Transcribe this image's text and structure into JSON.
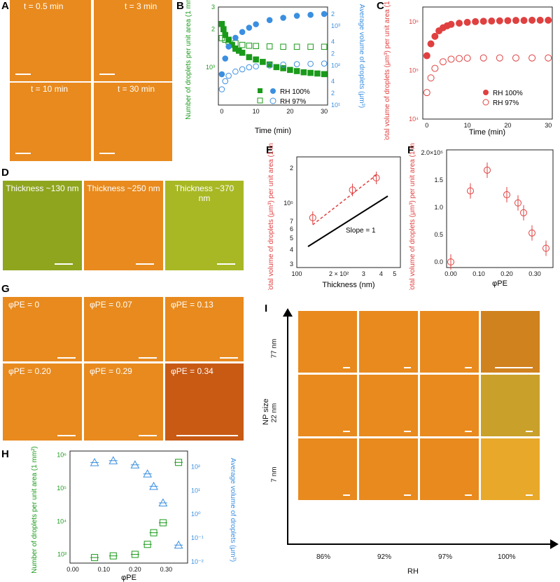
{
  "panels": {
    "A": "A",
    "B": "B",
    "C": "C",
    "D": "D",
    "E": "E",
    "F": "F",
    "G": "G",
    "H": "H",
    "I": "I"
  },
  "panelA": {
    "times": [
      "t = 0.5 min",
      "t = 3 min",
      "t = 10 min",
      "t = 30 min"
    ]
  },
  "panelD": {
    "thickness": [
      "Thickness ~130 nm",
      "Thickness ~250 nm",
      "Thickness ~370 nm"
    ]
  },
  "panelG": {
    "phi": [
      "φPE = 0",
      "φPE = 0.07",
      "φPE = 0.13",
      "φPE = 0.20",
      "φPE = 0.29",
      "φPE = 0.34"
    ]
  },
  "panelI": {
    "ylabel": "NP size",
    "xlabel": "RH",
    "rows": [
      "77 nm",
      "22 nm",
      "7 nm"
    ],
    "cols": [
      "86%",
      "92%",
      "97%",
      "100%"
    ]
  },
  "colors": {
    "green": "#1a9a1a",
    "blue": "#3b8fe0",
    "red": "#e04040",
    "orange": "#e88a1e"
  },
  "chart_data": [
    {
      "id": "B",
      "type": "scatter",
      "xlabel": "Time (min)",
      "ylabel": "Number of droplets per unit area (1 mm²)",
      "ylabel2": "Average volume of droplets (μm³)",
      "xlim": [
        -1,
        31
      ],
      "ylim": [
        500,
        3000
      ],
      "ylim2": [
        10,
        3000
      ],
      "xticks": [
        0,
        10,
        20,
        30
      ],
      "yticks": [
        "10³",
        "2",
        "3",
        "4",
        "5",
        "6"
      ],
      "yticks2": [
        "10¹",
        "2",
        "4",
        "10²",
        "2",
        "4",
        "10³",
        "2"
      ],
      "legend": [
        "RH 100%",
        "RH 97%"
      ],
      "series": [
        {
          "name": "RH 100%",
          "color": "green",
          "filled": true,
          "x": [
            0,
            0.5,
            1,
            2,
            3,
            4,
            5,
            6,
            8,
            10,
            12,
            14,
            16,
            18,
            20,
            22,
            24,
            26,
            28,
            30
          ],
          "y": [
            2200,
            2000,
            1800,
            1650,
            1500,
            1400,
            1350,
            1300,
            1200,
            1150,
            1100,
            1050,
            1000,
            980,
            950,
            930,
            910,
            900,
            890,
            880
          ]
        },
        {
          "name": "RH 97%",
          "color": "green",
          "filled": false,
          "x": [
            0,
            1,
            2,
            4,
            6,
            8,
            10,
            14,
            18,
            22,
            26,
            30
          ],
          "y": [
            1700,
            1650,
            1600,
            1550,
            1500,
            1480,
            1470,
            1460,
            1450,
            1450,
            1450,
            1450
          ]
        },
        {
          "name": "RH 100%",
          "color": "blue",
          "filled": true,
          "axis": "right",
          "x": [
            0,
            1,
            2,
            4,
            6,
            8,
            10,
            14,
            18,
            22,
            26,
            30
          ],
          "y": [
            60,
            150,
            300,
            500,
            700,
            900,
            1100,
            1400,
            1600,
            1800,
            1900,
            2000
          ]
        },
        {
          "name": "RH 97%",
          "color": "blue",
          "filled": false,
          "axis": "right",
          "x": [
            0,
            1,
            2,
            4,
            6,
            8,
            10,
            14,
            18,
            22,
            26,
            30
          ],
          "y": [
            25,
            40,
            55,
            70,
            80,
            90,
            95,
            100,
            105,
            108,
            110,
            112
          ]
        }
      ]
    },
    {
      "id": "C",
      "type": "scatter",
      "xlabel": "Time (min)",
      "ylabel": "Total volume of droplets (μm³) per unit area (1 mm²)",
      "xlim": [
        -1,
        31
      ],
      "ylim": [
        10000,
        2000000
      ],
      "xticks": [
        0,
        10,
        20,
        30
      ],
      "yticks": [
        "10⁴",
        "10⁵",
        "10⁶"
      ],
      "legend": [
        "RH 100%",
        "RH 97%"
      ],
      "series": [
        {
          "name": "RH 100%",
          "color": "red",
          "filled": true,
          "x": [
            0,
            1,
            2,
            3,
            4,
            5,
            6,
            8,
            10,
            12,
            14,
            16,
            18,
            20,
            22,
            24,
            26,
            28,
            30
          ],
          "y": [
            200000,
            350000,
            500000,
            650000,
            750000,
            820000,
            880000,
            930000,
            970000,
            1000000,
            1020000,
            1030000,
            1040000,
            1050000,
            1060000,
            1060000,
            1070000,
            1070000,
            1070000
          ]
        },
        {
          "name": "RH 97%",
          "color": "red",
          "filled": false,
          "x": [
            0,
            1,
            2,
            4,
            6,
            8,
            10,
            14,
            18,
            22,
            26,
            30
          ],
          "y": [
            35000,
            70000,
            110000,
            150000,
            170000,
            175000,
            178000,
            180000,
            180000,
            180000,
            180000,
            180000
          ]
        }
      ]
    },
    {
      "id": "E",
      "type": "scatter",
      "xlabel": "Thickness (nm)",
      "ylabel": "Total volume of droplets (μm³) per unit area (1 mm²)",
      "xticks": [
        "100",
        "2 × 10²",
        "3",
        "4",
        "5"
      ],
      "yticks": [
        "3",
        "4",
        "5",
        "6",
        "7",
        "10⁵",
        "2"
      ],
      "annotation": "Slope = 1",
      "series": [
        {
          "name": "",
          "color": "red",
          "filled": false,
          "x": [
            130,
            250,
            370
          ],
          "y": [
            75000,
            130000,
            165000
          ]
        }
      ]
    },
    {
      "id": "F",
      "type": "scatter",
      "xlabel": "φPE",
      "ylabel": "Total volume of droplets (μm³) per unit area (1 mm²)",
      "xlim": [
        0,
        0.36
      ],
      "ylim": [
        0,
        200000
      ],
      "xticks": [
        "0.00",
        "0.10",
        "0.20",
        "0.30"
      ],
      "yticks": [
        "0.0",
        "0.5",
        "1.0",
        "1.5",
        "2.0×10⁵"
      ],
      "series": [
        {
          "name": "",
          "color": "red",
          "filled": false,
          "x": [
            0.0,
            0.07,
            0.13,
            0.2,
            0.24,
            0.26,
            0.29,
            0.34
          ],
          "y": [
            0,
            130000,
            168000,
            123000,
            108000,
            90000,
            53000,
            25000
          ]
        }
      ]
    },
    {
      "id": "H",
      "type": "scatter",
      "xlabel": "φPE",
      "ylabel": "Number of droplets per unit area (1 mm²)",
      "ylabel2": "Average volume of droplets (μm³)",
      "xticks": [
        "0.00",
        "0.10",
        "0.20",
        "0.30"
      ],
      "yticks": [
        "10³",
        "10⁴",
        "10⁵",
        "10⁶"
      ],
      "yticks2": [
        "10⁻²",
        "10⁻¹",
        "10⁰",
        "10¹",
        "10²"
      ],
      "series": [
        {
          "name": "",
          "color": "green",
          "marker": "square",
          "x": [
            0.07,
            0.13,
            0.2,
            0.24,
            0.26,
            0.29,
            0.34
          ],
          "y": [
            800,
            900,
            1000,
            2000,
            4500,
            9000,
            600000
          ]
        },
        {
          "name": "",
          "color": "blue",
          "marker": "triangle",
          "axis": "right",
          "x": [
            0.07,
            0.13,
            0.2,
            0.24,
            0.26,
            0.29,
            0.34
          ],
          "y": [
            150,
            180,
            120,
            50,
            15,
            3,
            0.05
          ]
        }
      ]
    }
  ]
}
